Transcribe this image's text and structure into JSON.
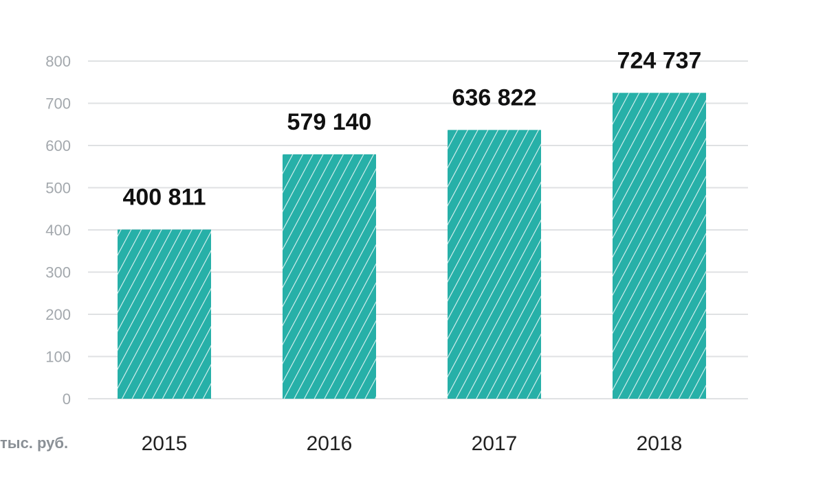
{
  "chart_data": {
    "type": "bar",
    "categories": [
      "2015",
      "2016",
      "2017",
      "2018"
    ],
    "values": [
      400.811,
      579.14,
      636.822,
      724.737
    ],
    "data_labels": [
      "400 811",
      "579 140",
      "636 822",
      "724 737"
    ],
    "title": "",
    "xlabel": "",
    "ylabel": "тыс. руб.",
    "ylim": [
      0,
      800
    ],
    "yticks": [
      "0",
      "100",
      "200",
      "300",
      "400",
      "500",
      "600",
      "700",
      "800"
    ],
    "grid": true,
    "legend": "none",
    "colors": {
      "bar": "#27b0a8",
      "hatch": "#ffffff",
      "grid": "#dfe1e3",
      "tick_text": "#a3a8ad",
      "value_text": "#111111",
      "unit_text": "#8a9096"
    }
  }
}
